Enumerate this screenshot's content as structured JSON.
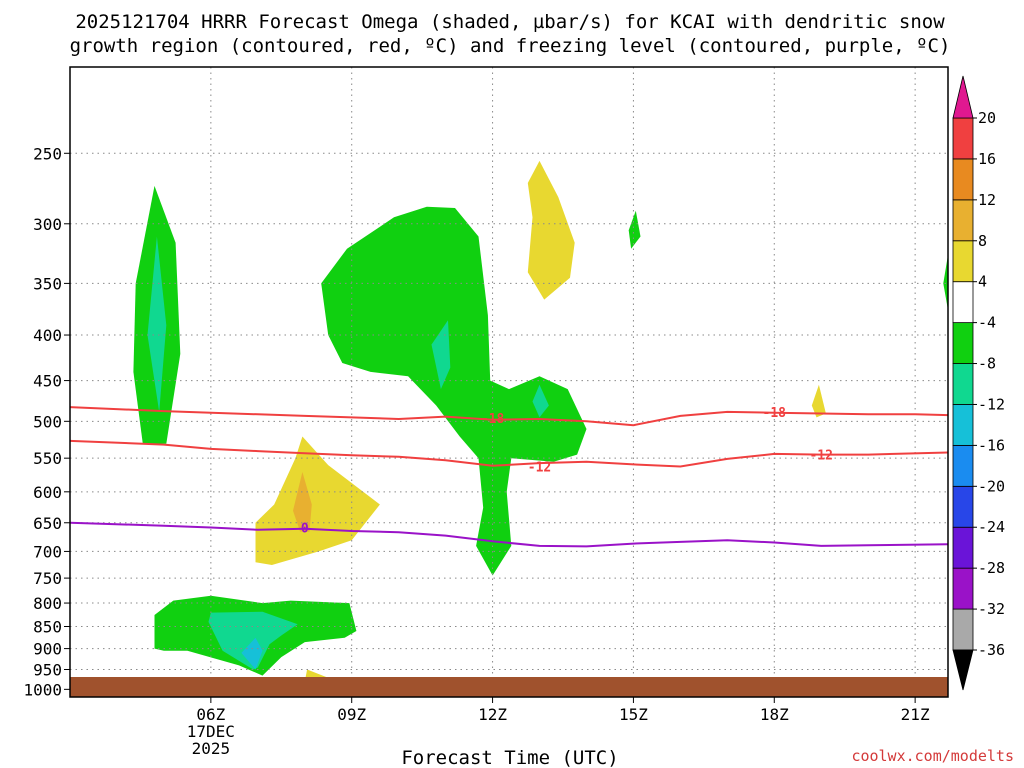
{
  "title": {
    "line1": "2025121704 HRRR Forecast Omega (shaded, µbar/s) for KCAI with dendritic snow",
    "line2": "growth region (contoured, red, ºC) and freezing level (contoured, purple, ºC)"
  },
  "credit": "coolwx.com/modelts",
  "colors": {
    "ground": "#a0522d",
    "isotherm_dgz": "#f04040",
    "freezing_level": "#9a12c8",
    "grid": "#8a8a8a"
  },
  "chart_data": {
    "type": "heatmap",
    "xlabel": "Forecast Time (UTC)",
    "x_unit": "hours after 2025-12-17 00Z",
    "xlim": [
      3.0,
      21.7
    ],
    "x_ticks": [
      {
        "hour": 6,
        "label": "06Z",
        "sub1": "17DEC",
        "sub2": "2025"
      },
      {
        "hour": 9,
        "label": "09Z"
      },
      {
        "hour": 12,
        "label": "12Z"
      },
      {
        "hour": 15,
        "label": "15Z"
      },
      {
        "hour": 18,
        "label": "18Z"
      },
      {
        "hour": 21,
        "label": "21Z"
      }
    ],
    "y_unit": "pressure (mb)",
    "ylim": [
      200,
      1020
    ],
    "y_scale": "log",
    "y_inverted": true,
    "y_ticks": [
      250,
      300,
      350,
      400,
      450,
      500,
      550,
      600,
      650,
      700,
      750,
      800,
      850,
      900,
      950,
      1000
    ],
    "grid": true,
    "colorbar": {
      "levels": [
        -36,
        -32,
        -28,
        -24,
        -20,
        -16,
        -12,
        -8,
        -4,
        4,
        8,
        12,
        16,
        20
      ],
      "labels": [
        "-36",
        "-32",
        "-28",
        "-24",
        "-20",
        "-16",
        "-12",
        "-8",
        "-4",
        "4",
        "8",
        "12",
        "16",
        "20"
      ],
      "colors": [
        "#a9a9a9",
        "#9a12c8",
        "#6a14d8",
        "#2846e8",
        "#1a8cf0",
        "#16c0d8",
        "#10d890",
        "#10d010",
        "#ffffff",
        "#e8d830",
        "#e8b030",
        "#e88a20",
        "#f04040"
      ],
      "under_color": "#000000",
      "over_color": "#e01890"
    },
    "regions": [
      {
        "label": "-4 to -8",
        "color": "#10d010",
        "points": [
          [
            4.55,
            530
          ],
          [
            4.35,
            440
          ],
          [
            4.4,
            350
          ],
          [
            4.8,
            272
          ],
          [
            5.25,
            315
          ],
          [
            5.35,
            420
          ],
          [
            5.05,
            530
          ]
        ]
      },
      {
        "label": "-8 to -12",
        "color": "#10d890",
        "points": [
          [
            4.9,
            488
          ],
          [
            4.65,
            400
          ],
          [
            4.85,
            310
          ],
          [
            5.05,
            390
          ]
        ]
      },
      {
        "label": "-4 to -8",
        "color": "#10d010",
        "points": [
          [
            8.5,
            400
          ],
          [
            8.35,
            350
          ],
          [
            8.9,
            320
          ],
          [
            9.9,
            295
          ],
          [
            10.6,
            287
          ],
          [
            11.2,
            288
          ],
          [
            11.7,
            310
          ],
          [
            11.9,
            380
          ],
          [
            11.95,
            450
          ],
          [
            12.35,
            460
          ],
          [
            13.0,
            445
          ],
          [
            13.6,
            460
          ],
          [
            14.0,
            510
          ],
          [
            13.8,
            545
          ],
          [
            13.3,
            555
          ],
          [
            12.4,
            550
          ],
          [
            12.3,
            600
          ],
          [
            12.4,
            690
          ],
          [
            12.0,
            745
          ],
          [
            11.65,
            690
          ],
          [
            11.8,
            625
          ],
          [
            11.7,
            550
          ],
          [
            11.3,
            520
          ],
          [
            10.8,
            480
          ],
          [
            10.2,
            445
          ],
          [
            9.4,
            440
          ],
          [
            8.8,
            430
          ]
        ]
      },
      {
        "label": "-8 to -12",
        "color": "#10d890",
        "points": [
          [
            10.9,
            460
          ],
          [
            10.7,
            410
          ],
          [
            11.05,
            385
          ],
          [
            11.1,
            435
          ]
        ]
      },
      {
        "label": "-8 to -12",
        "color": "#10d890",
        "points": [
          [
            13.0,
            495
          ],
          [
            12.85,
            475
          ],
          [
            13.0,
            455
          ],
          [
            13.2,
            480
          ]
        ]
      },
      {
        "label": "-4 to -8",
        "color": "#10d010",
        "points": [
          [
            14.95,
            320
          ],
          [
            14.9,
            305
          ],
          [
            15.05,
            290
          ],
          [
            15.15,
            310
          ]
        ]
      },
      {
        "label": "-4 to -8",
        "color": "#10d010",
        "points": [
          [
            21.7,
            375
          ],
          [
            21.6,
            350
          ],
          [
            21.7,
            325
          ]
        ]
      },
      {
        "label": "4 to 8",
        "color": "#e8d830",
        "points": [
          [
            12.85,
            295
          ],
          [
            12.75,
            270
          ],
          [
            13.0,
            255
          ],
          [
            13.4,
            280
          ],
          [
            13.75,
            315
          ],
          [
            13.65,
            345
          ],
          [
            13.1,
            365
          ],
          [
            12.75,
            340
          ]
        ]
      },
      {
        "label": "4 to 8",
        "color": "#e8d830",
        "points": [
          [
            18.9,
            495
          ],
          [
            18.8,
            480
          ],
          [
            18.95,
            455
          ],
          [
            19.1,
            490
          ]
        ]
      },
      {
        "label": "4 to 8",
        "color": "#e8d830",
        "points": [
          [
            6.95,
            720
          ],
          [
            6.95,
            650
          ],
          [
            7.35,
            620
          ],
          [
            7.8,
            550
          ],
          [
            7.95,
            520
          ],
          [
            8.5,
            560
          ],
          [
            9.6,
            620
          ],
          [
            9.0,
            680
          ],
          [
            8.3,
            700
          ],
          [
            7.3,
            725
          ]
        ]
      },
      {
        "label": "8 to 12",
        "color": "#e8b030",
        "points": [
          [
            7.9,
            665
          ],
          [
            7.75,
            630
          ],
          [
            7.95,
            570
          ],
          [
            8.15,
            620
          ],
          [
            8.1,
            665
          ]
        ]
      },
      {
        "label": "4 to 8",
        "color": "#e8d830",
        "points": [
          [
            8.0,
            980
          ],
          [
            8.05,
            950
          ],
          [
            8.6,
            975
          ]
        ]
      },
      {
        "label": "-4 to -8",
        "color": "#10d010",
        "points": [
          [
            4.8,
            900
          ],
          [
            4.8,
            825
          ],
          [
            5.2,
            795
          ],
          [
            6.0,
            785
          ],
          [
            7.1,
            800
          ],
          [
            7.7,
            795
          ],
          [
            8.95,
            800
          ],
          [
            9.1,
            860
          ],
          [
            8.85,
            875
          ],
          [
            8.0,
            885
          ],
          [
            7.5,
            920
          ],
          [
            7.1,
            965
          ],
          [
            6.6,
            940
          ],
          [
            5.5,
            905
          ],
          [
            5.0,
            905
          ]
        ]
      },
      {
        "label": "-8 to -12",
        "color": "#10d890",
        "points": [
          [
            5.95,
            840
          ],
          [
            6.0,
            820
          ],
          [
            7.1,
            818
          ],
          [
            7.85,
            845
          ],
          [
            7.5,
            870
          ],
          [
            7.25,
            890
          ],
          [
            7.0,
            945
          ],
          [
            6.9,
            950
          ],
          [
            6.25,
            905
          ]
        ]
      },
      {
        "label": "-12 to -16",
        "color": "#16c0d8",
        "points": [
          [
            6.65,
            910
          ],
          [
            6.95,
            875
          ],
          [
            7.1,
            905
          ],
          [
            6.95,
            950
          ]
        ]
      }
    ],
    "series": [
      {
        "name": "-18",
        "color": "#f04040",
        "label_at": [
          [
            12.0,
            496
          ],
          [
            18.0,
            488
          ]
        ],
        "x": [
          3.0,
          5.0,
          7.0,
          8.0,
          9.0,
          10.0,
          11.0,
          12.0,
          13.0,
          14.0,
          15.0,
          16.0,
          17.0,
          18.0,
          19.0,
          20.0,
          21.0,
          21.7
        ],
        "y": [
          482,
          487,
          491,
          493,
          495,
          497,
          494,
          498,
          497,
          500,
          505,
          493,
          488,
          489,
          490,
          491,
          491,
          492
        ]
      },
      {
        "name": "-12",
        "color": "#f04040",
        "label_at": [
          [
            13.0,
            562
          ],
          [
            19.0,
            545
          ]
        ],
        "x": [
          3.0,
          5.0,
          6.0,
          7.0,
          8.0,
          9.0,
          10.0,
          11.0,
          12.0,
          13.0,
          14.0,
          15.0,
          16.0,
          17.0,
          18.0,
          19.0,
          20.0,
          21.7
        ],
        "y": [
          526,
          531,
          537,
          540,
          543,
          546,
          548,
          553,
          561,
          557,
          555,
          559,
          562,
          551,
          544,
          545,
          545,
          542
        ]
      },
      {
        "name": "0",
        "color": "#9a12c8",
        "label_at": [
          [
            8.0,
            658
          ]
        ],
        "x": [
          3.0,
          5.0,
          6.0,
          7.0,
          8.0,
          9.0,
          10.0,
          11.0,
          12.0,
          13.0,
          14.0,
          15.0,
          16.0,
          17.0,
          18.0,
          19.0,
          20.0,
          21.7
        ],
        "y": [
          650,
          655,
          658,
          662,
          660,
          664,
          666,
          672,
          682,
          690,
          691,
          686,
          683,
          680,
          684,
          690,
          689,
          687
        ]
      }
    ]
  }
}
